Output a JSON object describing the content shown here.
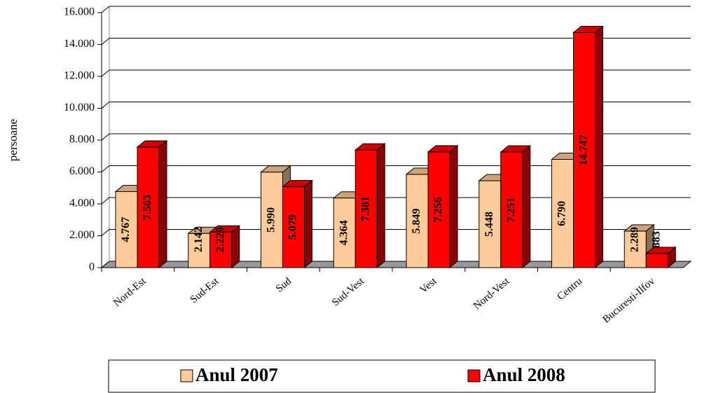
{
  "chart_data": {
    "type": "bar3d",
    "ylabel": "persoane",
    "categories": [
      "Nord-Est",
      "Sud-Est",
      "Sud",
      "Sud-Vest",
      "Vest",
      "Nord-Vest",
      "Centru",
      "Bucuresti-Ilfov"
    ],
    "series": [
      {
        "name": "Anul 2007",
        "color": "#ffcc99",
        "values": [
          4767,
          2142,
          5990,
          4364,
          5849,
          5448,
          6790,
          2289
        ],
        "value_labels": [
          "4.767",
          "2.142",
          "5.990",
          "4.364",
          "5.849",
          "5.448",
          "6.790",
          "2.289"
        ]
      },
      {
        "name": "Anul 2008",
        "color": "#ff0000",
        "values": [
          7563,
          2229,
          5079,
          7381,
          7256,
          7251,
          14747,
          883
        ],
        "value_labels": [
          "7.563",
          "2.229",
          "5.079",
          "7.381",
          "7.256",
          "7.251",
          "14.747",
          "883"
        ]
      }
    ],
    "ylim": [
      0,
      16000
    ],
    "yticks": [
      0,
      {
        "value": 2000,
        "label": "2.000"
      },
      {
        "value": 4000,
        "label": "4.000"
      },
      {
        "value": 6000,
        "label": "6.000"
      },
      {
        "value": 8000,
        "label": "8.000"
      },
      {
        "value": 10000,
        "label": "10.000"
      },
      {
        "value": 12000,
        "label": "12.000"
      },
      {
        "value": 14000,
        "label": "14.000"
      },
      {
        "value": 16000,
        "label": "16.000"
      }
    ],
    "grid": true,
    "legend": "bottom"
  }
}
